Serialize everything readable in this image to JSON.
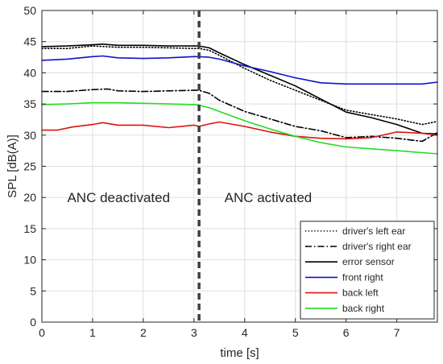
{
  "chart_data": {
    "type": "line",
    "xlabel": "time [s]",
    "ylabel": "SPL [dB(A)]",
    "xlim": [
      0,
      7.8
    ],
    "ylim": [
      0,
      50
    ],
    "xticks": [
      0,
      1,
      2,
      3,
      4,
      5,
      6,
      7
    ],
    "yticks": [
      0,
      5,
      10,
      15,
      20,
      25,
      30,
      35,
      40,
      45,
      50
    ],
    "grid": true,
    "legend_position": "bottom-right",
    "vline": {
      "x": 3.1,
      "color": "#404040",
      "dash": "dashed"
    },
    "annotations": [
      {
        "text": "ANC deactivated",
        "x": 0.5,
        "y": 20
      },
      {
        "text": "ANC activated",
        "x": 3.6,
        "y": 20
      }
    ],
    "series": [
      {
        "name": "driver's left ear",
        "color": "#000000",
        "dash": "dotted",
        "x": [
          0,
          0.5,
          1,
          1.5,
          2,
          2.5,
          3,
          3.1,
          3.3,
          3.5,
          4,
          4.5,
          5,
          5.5,
          6,
          6.5,
          7,
          7.5,
          7.8
        ],
        "y": [
          43.9,
          43.9,
          44.3,
          44.1,
          44.1,
          44.0,
          43.9,
          43.9,
          43.6,
          42.8,
          40.7,
          38.8,
          37.2,
          35.6,
          34.0,
          33.3,
          32.6,
          31.7,
          32.2
        ]
      },
      {
        "name": "driver's right ear",
        "color": "#000000",
        "dash": "dashdot",
        "x": [
          0,
          0.5,
          1,
          1.3,
          1.5,
          2,
          2.5,
          3,
          3.1,
          3.3,
          3.5,
          4,
          4.5,
          5,
          5.5,
          6,
          6.5,
          7,
          7.5,
          7.8
        ],
        "y": [
          37.0,
          37.0,
          37.3,
          37.4,
          37.1,
          37.0,
          37.1,
          37.2,
          37.2,
          36.7,
          35.6,
          33.8,
          32.6,
          31.4,
          30.7,
          29.6,
          29.8,
          29.5,
          29.0,
          30.4
        ]
      },
      {
        "name": "error sensor",
        "color": "#000000",
        "dash": "solid",
        "x": [
          0,
          0.5,
          1,
          1.2,
          1.5,
          2,
          2.5,
          3,
          3.1,
          3.3,
          3.5,
          4,
          4.5,
          5,
          5.5,
          6,
          6.5,
          7,
          7.5,
          7.8
        ],
        "y": [
          44.2,
          44.3,
          44.5,
          44.6,
          44.4,
          44.4,
          44.3,
          44.3,
          44.3,
          44.0,
          43.2,
          41.3,
          39.6,
          37.9,
          35.8,
          33.7,
          32.8,
          31.7,
          30.3,
          30.2
        ]
      },
      {
        "name": "front right",
        "color": "#1010cc",
        "dash": "solid",
        "x": [
          0,
          0.5,
          1,
          1.2,
          1.5,
          2,
          2.5,
          3,
          3.1,
          3.3,
          3.5,
          4,
          4.5,
          5,
          5.5,
          6,
          6.5,
          7,
          7.5,
          7.8
        ],
        "y": [
          42.0,
          42.2,
          42.6,
          42.7,
          42.4,
          42.3,
          42.4,
          42.6,
          42.6,
          42.5,
          42.2,
          41.1,
          40.2,
          39.2,
          38.4,
          38.2,
          38.2,
          38.2,
          38.2,
          38.5
        ]
      },
      {
        "name": "back left",
        "color": "#e01010",
        "dash": "solid",
        "x": [
          0,
          0.3,
          0.6,
          1,
          1.2,
          1.5,
          2,
          2.5,
          3,
          3.1,
          3.3,
          3.5,
          4,
          4.5,
          5,
          5.5,
          6,
          6.5,
          7,
          7.5,
          7.8
        ],
        "y": [
          30.8,
          30.8,
          31.3,
          31.7,
          32.0,
          31.6,
          31.6,
          31.2,
          31.6,
          31.4,
          31.8,
          32.1,
          31.4,
          30.5,
          29.8,
          29.5,
          29.4,
          29.6,
          30.5,
          30.3,
          30.0
        ]
      },
      {
        "name": "back right",
        "color": "#22dd22",
        "dash": "solid",
        "x": [
          0,
          0.5,
          1,
          1.5,
          2,
          2.5,
          3,
          3.1,
          3.3,
          3.5,
          4,
          4.5,
          5,
          5.5,
          6,
          6.5,
          7,
          7.5,
          7.8
        ],
        "y": [
          34.9,
          35.0,
          35.2,
          35.2,
          35.1,
          35.0,
          34.9,
          34.8,
          34.4,
          33.8,
          32.3,
          31.0,
          29.8,
          28.8,
          28.1,
          27.8,
          27.5,
          27.2,
          27.0
        ]
      }
    ]
  }
}
